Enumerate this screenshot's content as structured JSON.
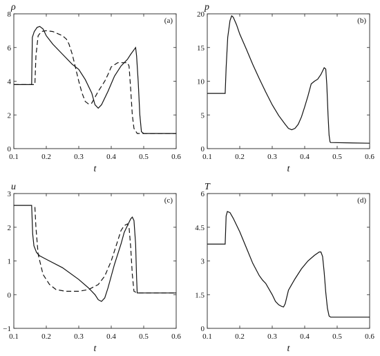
{
  "chart_data": [
    {
      "type": "line",
      "panel_label": "(a)",
      "ylabel": "ρ",
      "xlabel": "t",
      "xlim": [
        0.1,
        0.6
      ],
      "ylim": [
        0,
        8
      ],
      "x_ticks": [
        "0.1",
        "0.2",
        "0.3",
        "0.4",
        "0.5",
        "0.6"
      ],
      "y_ticks": [
        "0",
        "2",
        "4",
        "6",
        "8"
      ],
      "y_tick_values": [
        0,
        2,
        4,
        6,
        8
      ],
      "series": [
        {
          "style": "solid",
          "points": [
            [
              0.1,
              3.8
            ],
            [
              0.155,
              3.8
            ],
            [
              0.157,
              6.6
            ],
            [
              0.163,
              6.95
            ],
            [
              0.172,
              7.2
            ],
            [
              0.18,
              7.25
            ],
            [
              0.19,
              7.1
            ],
            [
              0.2,
              6.7
            ],
            [
              0.22,
              6.2
            ],
            [
              0.25,
              5.6
            ],
            [
              0.28,
              5.0
            ],
            [
              0.3,
              4.7
            ],
            [
              0.32,
              4.1
            ],
            [
              0.34,
              3.3
            ],
            [
              0.35,
              2.6
            ],
            [
              0.36,
              2.4
            ],
            [
              0.37,
              2.6
            ],
            [
              0.39,
              3.4
            ],
            [
              0.41,
              4.3
            ],
            [
              0.43,
              4.9
            ],
            [
              0.45,
              5.3
            ],
            [
              0.46,
              5.6
            ],
            [
              0.475,
              6.0
            ],
            [
              0.478,
              5.5
            ],
            [
              0.483,
              4.0
            ],
            [
              0.488,
              2.0
            ],
            [
              0.493,
              1.0
            ],
            [
              0.5,
              0.9
            ],
            [
              0.6,
              0.9
            ]
          ]
        },
        {
          "style": "dashed",
          "points": [
            [
              0.1,
              3.8
            ],
            [
              0.165,
              3.8
            ],
            [
              0.168,
              5.5
            ],
            [
              0.175,
              6.7
            ],
            [
              0.185,
              6.95
            ],
            [
              0.2,
              7.0
            ],
            [
              0.22,
              6.95
            ],
            [
              0.25,
              6.7
            ],
            [
              0.262,
              6.5
            ],
            [
              0.27,
              6.2
            ],
            [
              0.28,
              5.6
            ],
            [
              0.29,
              4.8
            ],
            [
              0.3,
              4.0
            ],
            [
              0.31,
              3.3
            ],
            [
              0.32,
              2.8
            ],
            [
              0.33,
              2.65
            ],
            [
              0.34,
              2.7
            ],
            [
              0.36,
              3.4
            ],
            [
              0.38,
              4.0
            ],
            [
              0.39,
              4.4
            ],
            [
              0.4,
              4.85
            ],
            [
              0.42,
              5.1
            ],
            [
              0.45,
              5.1
            ],
            [
              0.455,
              4.9
            ],
            [
              0.46,
              3.5
            ],
            [
              0.465,
              2.0
            ],
            [
              0.47,
              1.2
            ],
            [
              0.48,
              0.9
            ],
            [
              0.6,
              0.9
            ]
          ]
        }
      ]
    },
    {
      "type": "line",
      "panel_label": "(b)",
      "ylabel": "p",
      "xlabel": "t",
      "xlim": [
        0.1,
        0.6
      ],
      "ylim": [
        0,
        20
      ],
      "x_ticks": [
        "0.1",
        "0.2",
        "0.3",
        "0.4",
        "0.5",
        "0.6"
      ],
      "y_ticks": [
        "0",
        "5",
        "10",
        "15",
        "20"
      ],
      "y_tick_values": [
        0,
        5,
        10,
        15,
        20
      ],
      "series": [
        {
          "style": "solid",
          "points": [
            [
              0.1,
              8.2
            ],
            [
              0.155,
              8.2
            ],
            [
              0.158,
              12.0
            ],
            [
              0.163,
              16.5
            ],
            [
              0.17,
              19.0
            ],
            [
              0.175,
              19.7
            ],
            [
              0.18,
              19.5
            ],
            [
              0.19,
              18.4
            ],
            [
              0.2,
              17.0
            ],
            [
              0.22,
              14.8
            ],
            [
              0.24,
              12.5
            ],
            [
              0.26,
              10.4
            ],
            [
              0.28,
              8.4
            ],
            [
              0.3,
              6.5
            ],
            [
              0.32,
              4.9
            ],
            [
              0.34,
              3.6
            ],
            [
              0.35,
              3.0
            ],
            [
              0.36,
              2.8
            ],
            [
              0.37,
              3.0
            ],
            [
              0.38,
              3.6
            ],
            [
              0.39,
              4.7
            ],
            [
              0.4,
              6.2
            ],
            [
              0.41,
              7.8
            ],
            [
              0.42,
              9.6
            ],
            [
              0.43,
              10.0
            ],
            [
              0.44,
              10.3
            ],
            [
              0.45,
              11.0
            ],
            [
              0.46,
              12.0
            ],
            [
              0.465,
              11.8
            ],
            [
              0.468,
              9.5
            ],
            [
              0.472,
              5.0
            ],
            [
              0.475,
              2.0
            ],
            [
              0.478,
              1.0
            ],
            [
              0.48,
              0.9
            ],
            [
              0.6,
              0.8
            ]
          ]
        }
      ]
    },
    {
      "type": "line",
      "panel_label": "(c)",
      "ylabel": "u",
      "xlabel": "t",
      "xlim": [
        0.1,
        0.6
      ],
      "ylim": [
        -1,
        3
      ],
      "x_ticks": [
        "0.1",
        "0.2",
        "0.3",
        "0.4",
        "0.5",
        "0.6"
      ],
      "y_ticks": [
        "−1",
        "0",
        "1",
        "2",
        "3"
      ],
      "y_tick_values": [
        -1,
        0,
        1,
        2,
        3
      ],
      "series": [
        {
          "style": "solid",
          "points": [
            [
              0.1,
              2.65
            ],
            [
              0.155,
              2.65
            ],
            [
              0.158,
              1.8
            ],
            [
              0.162,
              1.45
            ],
            [
              0.17,
              1.25
            ],
            [
              0.18,
              1.15
            ],
            [
              0.2,
              1.05
            ],
            [
              0.25,
              0.8
            ],
            [
              0.3,
              0.45
            ],
            [
              0.33,
              0.2
            ],
            [
              0.35,
              0.0
            ],
            [
              0.36,
              -0.15
            ],
            [
              0.37,
              -0.2
            ],
            [
              0.38,
              -0.1
            ],
            [
              0.39,
              0.2
            ],
            [
              0.41,
              0.9
            ],
            [
              0.43,
              1.5
            ],
            [
              0.44,
              1.85
            ],
            [
              0.45,
              2.05
            ],
            [
              0.46,
              2.25
            ],
            [
              0.465,
              2.3
            ],
            [
              0.47,
              2.2
            ],
            [
              0.475,
              1.5
            ],
            [
              0.478,
              0.5
            ],
            [
              0.48,
              0.05
            ],
            [
              0.6,
              0.05
            ]
          ]
        },
        {
          "style": "dashed",
          "points": [
            [
              0.165,
              2.6
            ],
            [
              0.168,
              2.0
            ],
            [
              0.175,
              1.2
            ],
            [
              0.19,
              0.6
            ],
            [
              0.21,
              0.3
            ],
            [
              0.23,
              0.15
            ],
            [
              0.26,
              0.1
            ],
            [
              0.3,
              0.1
            ],
            [
              0.33,
              0.15
            ],
            [
              0.36,
              0.3
            ],
            [
              0.38,
              0.55
            ],
            [
              0.4,
              1.0
            ],
            [
              0.42,
              1.6
            ],
            [
              0.43,
              1.9
            ],
            [
              0.44,
              2.05
            ],
            [
              0.45,
              2.1
            ],
            [
              0.455,
              2.0
            ],
            [
              0.46,
              1.4
            ],
            [
              0.465,
              0.6
            ],
            [
              0.47,
              0.1
            ],
            [
              0.48,
              0.05
            ],
            [
              0.6,
              0.05
            ]
          ]
        }
      ]
    },
    {
      "type": "line",
      "panel_label": "(d)",
      "ylabel": "T",
      "xlabel": "t",
      "xlim": [
        0.1,
        0.6
      ],
      "ylim": [
        0,
        6
      ],
      "x_ticks": [
        "0.1",
        "0.2",
        "0.3",
        "0.4",
        "0.5",
        "0.6"
      ],
      "y_ticks": [
        "0",
        "1.5",
        "3",
        "4.5",
        "6"
      ],
      "y_tick_values": [
        0,
        1.5,
        3,
        4.5,
        6
      ],
      "series": [
        {
          "style": "solid",
          "points": [
            [
              0.1,
              3.75
            ],
            [
              0.155,
              3.75
            ],
            [
              0.158,
              5.0
            ],
            [
              0.162,
              5.2
            ],
            [
              0.17,
              5.15
            ],
            [
              0.18,
              4.9
            ],
            [
              0.2,
              4.3
            ],
            [
              0.22,
              3.6
            ],
            [
              0.24,
              2.9
            ],
            [
              0.26,
              2.35
            ],
            [
              0.27,
              2.15
            ],
            [
              0.28,
              2.0
            ],
            [
              0.3,
              1.5
            ],
            [
              0.31,
              1.2
            ],
            [
              0.32,
              1.05
            ],
            [
              0.33,
              0.97
            ],
            [
              0.335,
              0.95
            ],
            [
              0.34,
              1.1
            ],
            [
              0.35,
              1.7
            ],
            [
              0.36,
              1.95
            ],
            [
              0.37,
              2.2
            ],
            [
              0.39,
              2.65
            ],
            [
              0.41,
              3.0
            ],
            [
              0.43,
              3.25
            ],
            [
              0.445,
              3.4
            ],
            [
              0.45,
              3.4
            ],
            [
              0.455,
              3.2
            ],
            [
              0.46,
              2.5
            ],
            [
              0.465,
              1.6
            ],
            [
              0.47,
              0.9
            ],
            [
              0.475,
              0.55
            ],
            [
              0.48,
              0.5
            ],
            [
              0.6,
              0.5
            ]
          ]
        }
      ]
    }
  ]
}
